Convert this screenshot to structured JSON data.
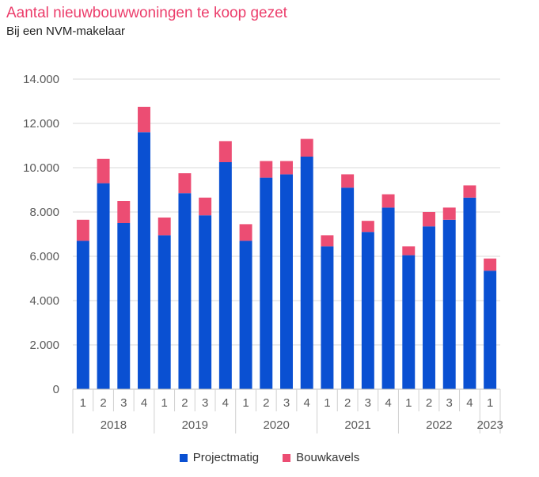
{
  "title": "Aantal nieuwbouwwoningen te koop gezet",
  "subtitle": "Bij een NVM-makelaar",
  "colors": {
    "projectmatig": "#0a50d2",
    "bouwkavels": "#ec4d73",
    "title": "#ec3d6b",
    "grid": "#d9d9d9"
  },
  "chart_data": {
    "type": "bar",
    "stacked": true,
    "title": "Aantal nieuwbouwwoningen te koop gezet",
    "subtitle": "Bij een NVM-makelaar",
    "xlabel": "",
    "ylabel": "",
    "ylim": [
      0,
      14000
    ],
    "yticks": [
      0,
      2000,
      4000,
      6000,
      8000,
      10000,
      12000,
      14000
    ],
    "ytick_labels": [
      "0",
      "2.000",
      "4.000",
      "6.000",
      "8.000",
      "10.000",
      "12.000",
      "14.000"
    ],
    "grid": true,
    "legend_position": "bottom",
    "categories": [
      {
        "quarter": "1",
        "year": "2018"
      },
      {
        "quarter": "2",
        "year": "2018"
      },
      {
        "quarter": "3",
        "year": "2018"
      },
      {
        "quarter": "4",
        "year": "2018"
      },
      {
        "quarter": "1",
        "year": "2019"
      },
      {
        "quarter": "2",
        "year": "2019"
      },
      {
        "quarter": "3",
        "year": "2019"
      },
      {
        "quarter": "4",
        "year": "2019"
      },
      {
        "quarter": "1",
        "year": "2020"
      },
      {
        "quarter": "2",
        "year": "2020"
      },
      {
        "quarter": "3",
        "year": "2020"
      },
      {
        "quarter": "4",
        "year": "2020"
      },
      {
        "quarter": "1",
        "year": "2021"
      },
      {
        "quarter": "2",
        "year": "2021"
      },
      {
        "quarter": "3",
        "year": "2021"
      },
      {
        "quarter": "4",
        "year": "2021"
      },
      {
        "quarter": "1",
        "year": "2022"
      },
      {
        "quarter": "2",
        "year": "2022"
      },
      {
        "quarter": "3",
        "year": "2022"
      },
      {
        "quarter": "4",
        "year": "2022"
      },
      {
        "quarter": "1",
        "year": "2023"
      }
    ],
    "years": [
      "2018",
      "2019",
      "2020",
      "2021",
      "2022",
      "2023"
    ],
    "series": [
      {
        "name": "Projectmatig",
        "values": [
          6700,
          9300,
          7500,
          11600,
          6950,
          8850,
          7850,
          10250,
          6700,
          9550,
          9700,
          10500,
          6450,
          9100,
          7100,
          8200,
          6050,
          7350,
          7650,
          8650,
          5350
        ]
      },
      {
        "name": "Bouwkavels",
        "values": [
          950,
          1100,
          1000,
          1150,
          800,
          900,
          800,
          950,
          750,
          750,
          600,
          800,
          500,
          600,
          500,
          600,
          400,
          650,
          550,
          550,
          550
        ]
      }
    ]
  }
}
